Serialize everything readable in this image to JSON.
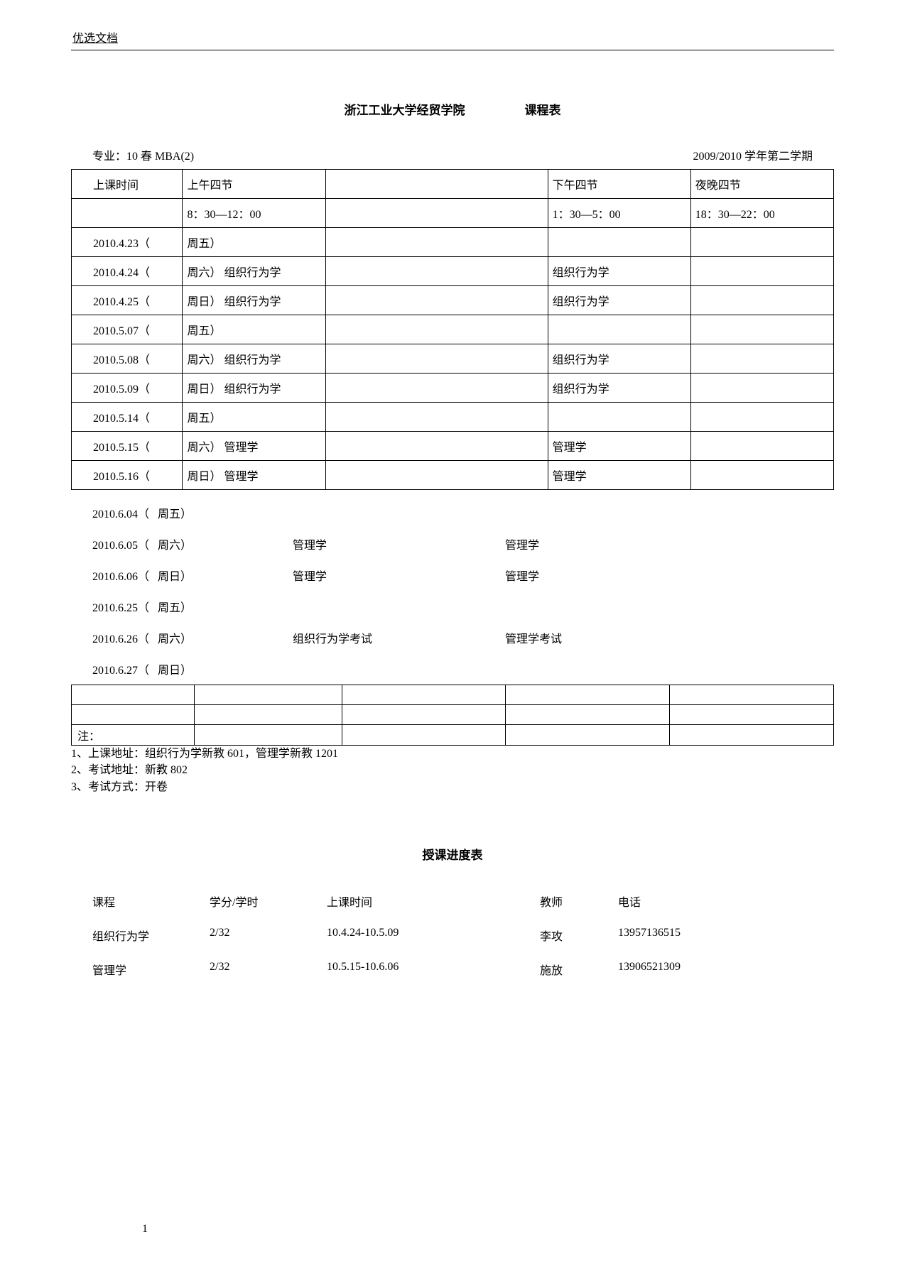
{
  "header": "优选文档",
  "title": {
    "school": "浙江工业大学经贸学院",
    "label": "课程表"
  },
  "meta": {
    "major": "专业：10 春 MBA(2)",
    "term": "2009/2010 学年第二学期"
  },
  "schedule": {
    "headers": {
      "time": "上课时间",
      "morning": "上午四节",
      "afternoon": "下午四节",
      "evening": "夜晚四节"
    },
    "times": {
      "morning": "8：30—12：00",
      "afternoon": "1：30—5：00",
      "evening": "18：30—22：00"
    },
    "rows_bordered": [
      {
        "date": "2010.4.23（",
        "day": "周五）",
        "m": "",
        "a": "",
        "e": ""
      },
      {
        "date": "2010.4.24（",
        "day": "周六）",
        "m": "组织行为学",
        "a": "组织行为学",
        "e": ""
      },
      {
        "date": "2010.4.25（",
        "day": "周日）",
        "m": "组织行为学",
        "a": "组织行为学",
        "e": ""
      },
      {
        "date": "2010.5.07（",
        "day": "周五）",
        "m": "",
        "a": "",
        "e": ""
      },
      {
        "date": "2010.5.08（",
        "day": "周六）",
        "m": "组织行为学",
        "a": "组织行为学",
        "e": ""
      },
      {
        "date": "2010.5.09（",
        "day": "周日）",
        "m": "组织行为学",
        "a": "组织行为学",
        "e": ""
      },
      {
        "date": "2010.5.14（",
        "day": "周五）",
        "m": "",
        "a": "",
        "e": ""
      },
      {
        "date": "2010.5.15（",
        "day": "周六）",
        "m": "管理学",
        "a": "管理学",
        "e": ""
      },
      {
        "date": "2010.5.16（",
        "day": "周日）",
        "m": "管理学",
        "a": "管理学",
        "e": ""
      }
    ],
    "rows_plain": [
      {
        "date": "2010.6.04（",
        "day": "周五）",
        "m": "",
        "a": ""
      },
      {
        "date": "2010.6.05（",
        "day": "周六）",
        "m": "管理学",
        "a": "管理学"
      },
      {
        "date": "2010.6.06（",
        "day": "周日）",
        "m": "管理学",
        "a": "管理学"
      },
      {
        "date": "2010.6.25（",
        "day": "周五）",
        "m": "",
        "a": ""
      },
      {
        "date": "2010.6.26（",
        "day": "周六）",
        "m": "组织行为学考试",
        "a": "管理学考试"
      },
      {
        "date": "2010.6.27（",
        "day": "周日）",
        "m": "",
        "a": ""
      }
    ]
  },
  "notes_label": "注：",
  "notes": [
    "1、上课地址：组织行为学新教 601，管理学新教 1201",
    "2、考试地址：新教 802",
    "3、考试方式：开卷"
  ],
  "progress": {
    "title": "授课进度表",
    "headers": {
      "course": "课程",
      "credit": "学分/学时",
      "time": "上课时间",
      "teacher": "教师",
      "phone": "电话"
    },
    "rows": [
      {
        "course": "组织行为学",
        "credit": "2/32",
        "time": "10.4.24-10.5.09",
        "teacher": "李攻",
        "phone": "13957136515"
      },
      {
        "course": "管理学",
        "credit": "2/32",
        "time": "10.5.15-10.6.06",
        "teacher": "施放",
        "phone": "13906521309"
      }
    ]
  },
  "page": "1"
}
